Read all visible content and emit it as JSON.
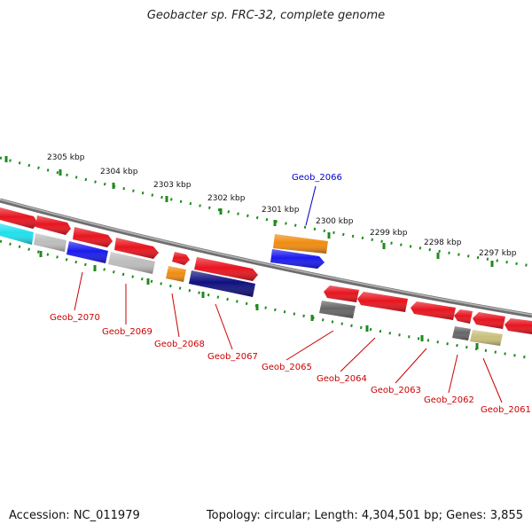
{
  "header": {
    "title": "Geobacter sp. FRC-32, complete genome"
  },
  "footer": {
    "accession": "Accession: NC_011979",
    "stats": "Topology: circular; Length: 4,304,501 bp; Genes: 3,855"
  },
  "ruler": {
    "labels": [
      "2305 kbp",
      "2304 kbp",
      "2303 kbp",
      "2302 kbp",
      "2301 kbp",
      "2300 kbp",
      "2299 kbp",
      "2298 kbp",
      "2297 kbp"
    ],
    "color": "#1f8a1f"
  },
  "colors": {
    "backbone": "#8a8a8a",
    "red": "#e8141e",
    "blue": "#1a1aee",
    "navy": "#101080",
    "orange": "#f08c10",
    "cyan": "#20e0ee",
    "lightgray": "#bdbdbd",
    "darkgray": "#666666",
    "khaki": "#c8bf7a"
  },
  "genes": [
    {
      "name": "Geob_2070",
      "color": "#e8141e"
    },
    {
      "name": "Geob_2069",
      "color": "#bdbdbd"
    },
    {
      "name": "Geob_2068",
      "color": "#f08c10"
    },
    {
      "name": "Geob_2067",
      "color": "#101080"
    },
    {
      "name": "Geob_2066",
      "color": "#1a1aee"
    },
    {
      "name": "Geob_2065",
      "color": "#666666"
    },
    {
      "name": "Geob_2064",
      "color": "#e8141e"
    },
    {
      "name": "Geob_2063",
      "color": "#e8141e"
    },
    {
      "name": "Geob_2062",
      "color": "#666666"
    },
    {
      "name": "Geob_2061",
      "color": "#c8bf7a"
    }
  ]
}
